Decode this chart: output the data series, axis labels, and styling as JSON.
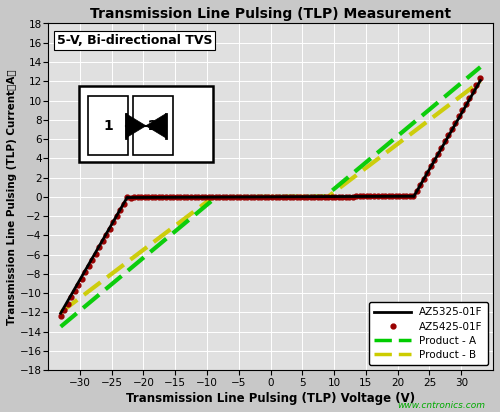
{
  "title": "Transmission Line Pulsing (TLP) Measurement",
  "xlabel": "Transmission Line Pulsing (TLP) Voltage (V)",
  "ylabel": "Transmission Line Pulsing (TLP) Current（A）",
  "xlim": [
    -35,
    35
  ],
  "ylim": [
    -18,
    18
  ],
  "xticks": [
    -30,
    -25,
    -20,
    -15,
    -10,
    -5,
    0,
    5,
    10,
    15,
    20,
    25,
    30
  ],
  "yticks": [
    -18,
    -16,
    -14,
    -12,
    -10,
    -8,
    -6,
    -4,
    -2,
    0,
    2,
    4,
    6,
    8,
    10,
    12,
    14,
    16,
    18
  ],
  "annotation_text": "5-V, Bi-directional TVS",
  "watermark": "www.cntronics.com",
  "bg_color": "#e0e0e0",
  "grid_color": "#ffffff",
  "legend_entries": [
    "AZ5325-01F",
    "AZ5425-01F",
    "Product - A",
    "Product - B"
  ],
  "curve_colors": [
    "#000000",
    "#990000",
    "#00cc00",
    "#cccc00"
  ],
  "az5325_vt": 22.5,
  "az5325_slope": 1.15,
  "az5425_vt": 22.5,
  "az5425_slope": 1.18,
  "prodA_vt": 8.5,
  "prodA_slope": 0.55,
  "prodB_vt": 9.0,
  "prodB_slope": 0.5
}
